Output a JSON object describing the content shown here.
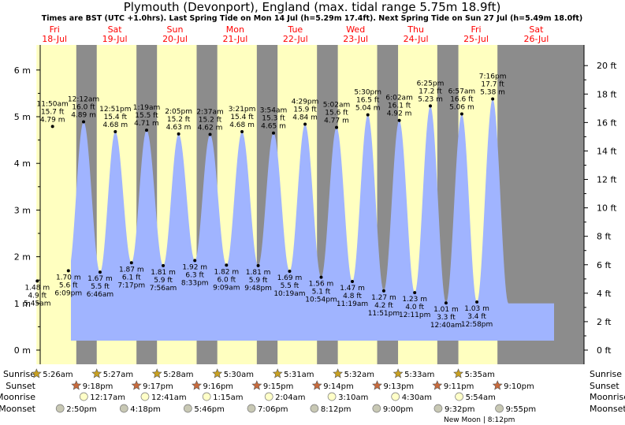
{
  "title": "Plymouth (Devonport), England (max. tidal range 5.75m 18.9ft)",
  "subtitle": "Times are BST (UTC +1.0hrs). Last Spring Tide on Mon 14 Jul (h=5.29m 17.4ft). Next Spring Tide on Sun 27 Jul (h=5.49m 18.0ft)",
  "colors": {
    "night": "#8c8c8c",
    "day": "#ffffc0",
    "tide": "#a0b4ff",
    "dayLabel": "#ff0000",
    "sunIcon": "#c8a020",
    "sunsetIcon": "#c86a3c",
    "moonIcon": "#ffffc8"
  },
  "chart_data": {
    "type": "area",
    "x_unit": "day from Fri 18 Jul 00:00",
    "ylim_m": [
      -0.3,
      6.4
    ],
    "ylim_ft": [
      -1,
      21
    ],
    "y_ticks_m": [
      "0 m",
      "1 m",
      "2 m",
      "3 m",
      "4 m",
      "5 m",
      "6 m"
    ],
    "y_ticks_ft": [
      "0 ft",
      "2 ft",
      "4 ft",
      "6 ft",
      "8 ft",
      "10 ft",
      "12 ft",
      "14 ft",
      "16 ft",
      "18 ft",
      "20 ft"
    ],
    "days": [
      {
        "dow": "Fri",
        "date": "18-Jul"
      },
      {
        "dow": "Sat",
        "date": "19-Jul"
      },
      {
        "dow": "Sun",
        "date": "20-Jul"
      },
      {
        "dow": "Mon",
        "date": "21-Jul"
      },
      {
        "dow": "Tue",
        "date": "22-Jul"
      },
      {
        "dow": "Wed",
        "date": "23-Jul"
      },
      {
        "dow": "Thu",
        "date": "24-Jul"
      },
      {
        "dow": "Fri",
        "date": "25-Jul"
      },
      {
        "dow": "Sat",
        "date": "26-Jul"
      }
    ],
    "tides": [
      {
        "time": "5:45 am",
        "m": 1.48,
        "ft": "4.9 ft",
        "mlabel": "1.48 m",
        "type": "low",
        "day": 0
      },
      {
        "time": "11:50 am",
        "m": 4.79,
        "ft": "15.7 ft",
        "mlabel": "4.79 m",
        "type": "high",
        "day": 0
      },
      {
        "time": "6:09 pm",
        "m": 1.7,
        "ft": "5.6 ft",
        "mlabel": "1.70 m",
        "type": "low",
        "day": 0
      },
      {
        "time": "12:12 am",
        "m": 4.89,
        "ft": "16.0 ft",
        "mlabel": "4.89 m",
        "type": "high",
        "day": 1
      },
      {
        "time": "6:46 am",
        "m": 1.67,
        "ft": "5.5 ft",
        "mlabel": "1.67 m",
        "type": "low",
        "day": 1
      },
      {
        "time": "12:51 pm",
        "m": 4.68,
        "ft": "15.4 ft",
        "mlabel": "4.68 m",
        "type": "high",
        "day": 1
      },
      {
        "time": "7:17 pm",
        "m": 1.87,
        "ft": "6.1 ft",
        "mlabel": "1.87 m",
        "type": "low",
        "day": 1
      },
      {
        "time": "1:19 am",
        "m": 4.71,
        "ft": "15.5 ft",
        "mlabel": "4.71 m",
        "type": "high",
        "day": 2
      },
      {
        "time": "7:56 am",
        "m": 1.81,
        "ft": "5.9 ft",
        "mlabel": "1.81 m",
        "type": "low",
        "day": 2
      },
      {
        "time": "2:05 pm",
        "m": 4.63,
        "ft": "15.2 ft",
        "mlabel": "4.63 m",
        "type": "high",
        "day": 2
      },
      {
        "time": "8:33 pm",
        "m": 1.92,
        "ft": "6.3 ft",
        "mlabel": "1.92 m",
        "type": "low",
        "day": 2
      },
      {
        "time": "2:37 am",
        "m": 4.62,
        "ft": "15.2 ft",
        "mlabel": "4.62 m",
        "type": "high",
        "day": 3
      },
      {
        "time": "9:09 am",
        "m": 1.82,
        "ft": "6.0 ft",
        "mlabel": "1.82 m",
        "type": "low",
        "day": 3
      },
      {
        "time": "3:21 pm",
        "m": 4.68,
        "ft": "15.4 ft",
        "mlabel": "4.68 m",
        "type": "high",
        "day": 3
      },
      {
        "time": "9:48 pm",
        "m": 1.81,
        "ft": "5.9 ft",
        "mlabel": "1.81 m",
        "type": "low",
        "day": 3
      },
      {
        "time": "3:54 am",
        "m": 4.65,
        "ft": "15.3 ft",
        "mlabel": "4.65 m",
        "type": "high",
        "day": 4
      },
      {
        "time": "10:19 am",
        "m": 1.69,
        "ft": "5.5 ft",
        "mlabel": "1.69 m",
        "type": "low",
        "day": 4
      },
      {
        "time": "4:29 pm",
        "m": 4.84,
        "ft": "15.9 ft",
        "mlabel": "4.84 m",
        "type": "high",
        "day": 4
      },
      {
        "time": "10:54 pm",
        "m": 1.56,
        "ft": "5.1 ft",
        "mlabel": "1.56 m",
        "type": "low",
        "day": 4
      },
      {
        "time": "5:02 am",
        "m": 4.77,
        "ft": "15.6 ft",
        "mlabel": "4.77 m",
        "type": "high",
        "day": 5
      },
      {
        "time": "11:19 am",
        "m": 1.47,
        "ft": "4.8 ft",
        "mlabel": "1.47 m",
        "type": "low",
        "day": 5
      },
      {
        "time": "5:30 pm",
        "m": 5.04,
        "ft": "16.5 ft",
        "mlabel": "5.04 m",
        "type": "high",
        "day": 5
      },
      {
        "time": "11:51 pm",
        "m": 1.27,
        "ft": "4.2 ft",
        "mlabel": "1.27 m",
        "type": "low",
        "day": 5
      },
      {
        "time": "6:02 am",
        "m": 4.92,
        "ft": "16.1 ft",
        "mlabel": "4.92 m",
        "type": "high",
        "day": 6
      },
      {
        "time": "12:11 pm",
        "m": 1.23,
        "ft": "4.0 ft",
        "mlabel": "1.23 m",
        "type": "low",
        "day": 6
      },
      {
        "time": "6:25 pm",
        "m": 5.23,
        "ft": "17.2 ft",
        "mlabel": "5.23 m",
        "type": "high",
        "day": 6
      },
      {
        "time": "12:40 am",
        "m": 1.01,
        "ft": "3.3 ft",
        "mlabel": "1.01 m",
        "type": "low",
        "day": 7
      },
      {
        "time": "6:57 am",
        "m": 5.06,
        "ft": "16.6 ft",
        "mlabel": "5.06 m",
        "type": "high",
        "day": 7
      },
      {
        "time": "12:58 pm",
        "m": 1.03,
        "ft": "3.4 ft",
        "mlabel": "1.03 m",
        "type": "low",
        "day": 7
      },
      {
        "time": "7:16 pm",
        "m": 5.38,
        "ft": "17.7 ft",
        "mlabel": "5.38 m",
        "type": "high",
        "day": 7
      }
    ],
    "sun": [
      {
        "rise": "5:26am",
        "set": "9:18pm"
      },
      {
        "rise": "5:27am",
        "set": "9:17pm"
      },
      {
        "rise": "5:28am",
        "set": "9:16pm"
      },
      {
        "rise": "5:30am",
        "set": "9:15pm"
      },
      {
        "rise": "5:31am",
        "set": "9:14pm"
      },
      {
        "rise": "5:32am",
        "set": "9:13pm"
      },
      {
        "rise": "5:33am",
        "set": "9:11pm"
      },
      {
        "rise": "5:35am",
        "set": "9:10pm"
      }
    ],
    "moonrise": [
      {
        "day": 1,
        "time": "12:17am"
      },
      {
        "day": 2,
        "time": "12:41am"
      },
      {
        "day": 3,
        "time": "1:15am"
      },
      {
        "day": 4,
        "time": "2:04am"
      },
      {
        "day": 5,
        "time": "3:10am"
      },
      {
        "day": 6,
        "time": "4:30am"
      },
      {
        "day": 7,
        "time": "5:54am"
      }
    ],
    "moonset": [
      {
        "day": 0,
        "time": "2:50pm"
      },
      {
        "day": 1,
        "time": "4:18pm"
      },
      {
        "day": 2,
        "time": "5:46pm"
      },
      {
        "day": 3,
        "time": "7:06pm"
      },
      {
        "day": 4,
        "time": "8:12pm"
      },
      {
        "day": 5,
        "time": "9:00pm"
      },
      {
        "day": 6,
        "time": "9:32pm"
      },
      {
        "day": 7,
        "time": "9:55pm"
      }
    ],
    "row_labels": {
      "sunrise": "Sunrise",
      "sunset": "Sunset",
      "moonrise": "Moonrise",
      "moonset": "Moonset"
    },
    "moon_note": "New Moon | 8:12pm"
  }
}
